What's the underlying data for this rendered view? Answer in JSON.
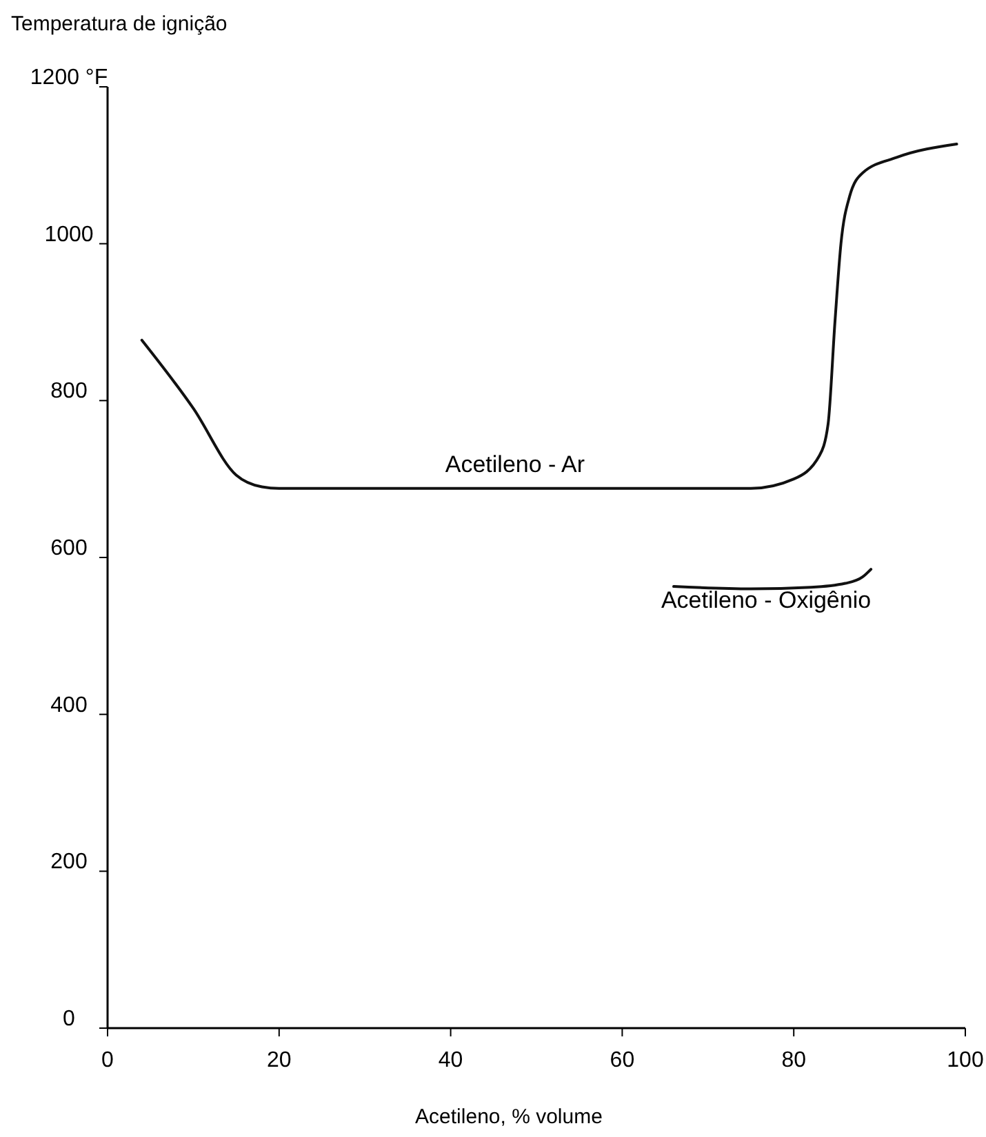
{
  "chart_data": {
    "type": "line",
    "ylabel": "Temperatura de ignição",
    "xlabel": "Acetileno, % volume",
    "xlim": [
      0,
      100
    ],
    "xticks": [
      0,
      20,
      40,
      60,
      80,
      100
    ],
    "ylim": [
      0,
      1200
    ],
    "yticks": [
      0,
      200,
      400,
      600,
      800,
      1000,
      {
        "value": 1200,
        "label": "1200 °F"
      }
    ],
    "grid": false,
    "marker": "none",
    "line_style": "solid",
    "series": [
      {
        "name": "Acetileno - Ar",
        "color": "#111111",
        "x": [
          4,
          10,
          15,
          18,
          20,
          75,
          80,
          83,
          84,
          84.8,
          85.5,
          86.5,
          88,
          92,
          99
        ],
        "values": [
          877,
          790,
          705,
          690,
          688,
          688,
          700,
          730,
          770,
          900,
          1000,
          1060,
          1090,
          1110,
          1127
        ]
      },
      {
        "name": "Acetileno - Oxigênio",
        "color": "#111111",
        "x": [
          66,
          75,
          82,
          86,
          88,
          89
        ],
        "values": [
          563,
          560,
          562,
          567,
          575,
          585
        ]
      }
    ]
  }
}
